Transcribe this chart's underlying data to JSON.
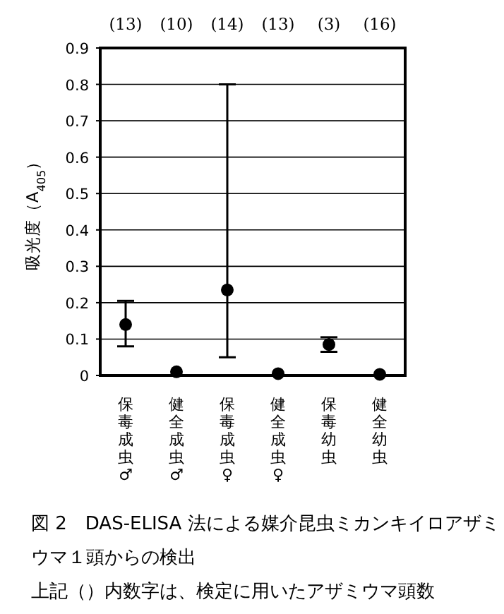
{
  "chart_data": {
    "type": "scatter",
    "title": "図 2　DAS-ELISA 法による媒介昆虫ミカンキイロアザミウマ１頭からの検出",
    "ylabel": "吸光度（A$_{405}$）",
    "categories": [
      "保毒成虫♂",
      "健全成虫♂",
      "保毒成虫♀",
      "健全成虫♀",
      "保毒幼虫",
      "健全幼虫"
    ],
    "series": [
      {
        "color": "#000000",
        "values": [
          0.14,
          0.01,
          0.235,
          0.005,
          0.085,
          0.003
        ],
        "errors": [
          [
            0.08,
            0.205
          ],
          null,
          [
            0.05,
            0.8
          ],
          null,
          [
            0.065,
            0.105
          ],
          null
        ]
      }
    ],
    "ylim": [
      0,
      0.9
    ],
    "yticks": [
      0,
      0.1,
      0.2,
      0.3,
      0.4,
      0.5,
      0.6,
      0.7,
      0.8,
      0.9
    ],
    "grid": "y",
    "marker": "circle",
    "annotations": [
      "(13)",
      "(10)",
      "(14)",
      "(13)",
      "(3)",
      "(16)",
      "上記（）内数字は、検定に用いたアザミウマ頭数"
    ]
  }
}
